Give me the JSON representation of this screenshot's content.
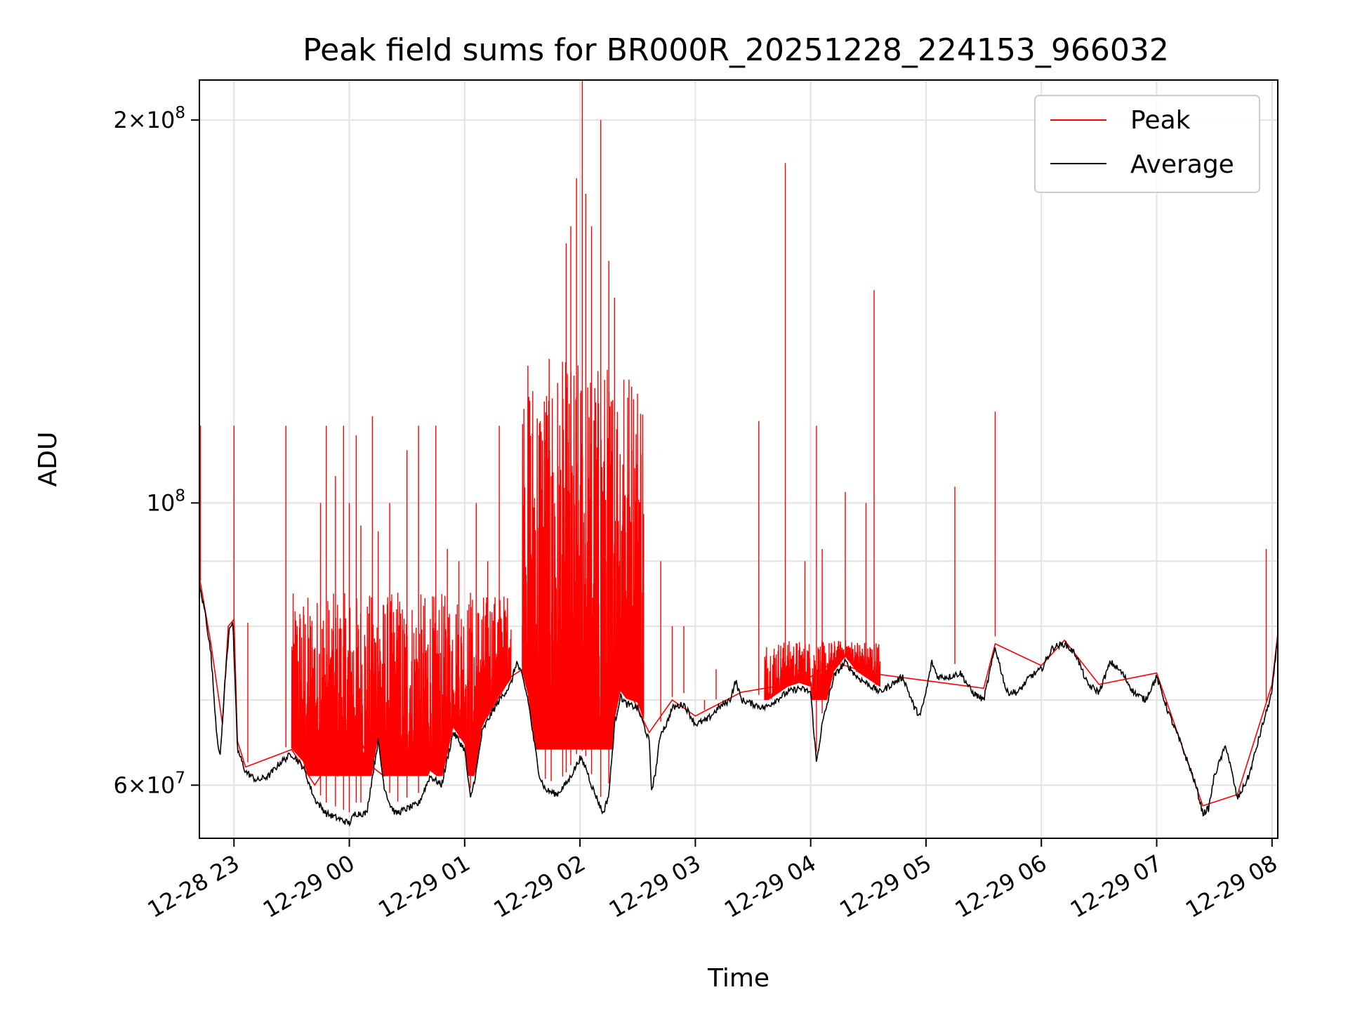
{
  "chart_data": {
    "type": "line",
    "title": "Peak field sums for BR000R_20251228_224153_966032",
    "xlabel": "Time",
    "ylabel": "ADU",
    "yscale": "log",
    "xlim": [
      -0.3,
      9.05
    ],
    "ylim": [
      54500000,
      215000000
    ],
    "grid": true,
    "legend_position": "top-right",
    "x_ticks": [
      {
        "value": 0,
        "label": "12-28 23"
      },
      {
        "value": 1,
        "label": "12-29 00"
      },
      {
        "value": 2,
        "label": "12-29 01"
      },
      {
        "value": 3,
        "label": "12-29 02"
      },
      {
        "value": 4,
        "label": "12-29 03"
      },
      {
        "value": 5,
        "label": "12-29 04"
      },
      {
        "value": 6,
        "label": "12-29 05"
      },
      {
        "value": 7,
        "label": "12-29 06"
      },
      {
        "value": 8,
        "label": "12-29 07"
      },
      {
        "value": 9,
        "label": "12-29 08"
      }
    ],
    "y_ticks": [
      {
        "value": 60000000,
        "mant": "6",
        "exp": "7"
      },
      {
        "value": 100000000,
        "mant": "",
        "exp": "8"
      },
      {
        "value": 200000000,
        "mant": "2",
        "exp": "8"
      }
    ],
    "y_minor_grid": [
      70000000,
      80000000,
      90000000
    ],
    "x_unit_note": "hours after 2025-12-28 23:00",
    "series": [
      {
        "name": "Average",
        "color": "#000000",
        "points": [
          [
            -0.3,
            86000000
          ],
          [
            -0.25,
            82000000
          ],
          [
            -0.2,
            76000000
          ],
          [
            -0.15,
            66000000
          ],
          [
            -0.12,
            63000000
          ],
          [
            -0.08,
            72000000
          ],
          [
            -0.04,
            80000000
          ],
          [
            -0.01,
            80500000
          ],
          [
            0.03,
            64000000
          ],
          [
            0.1,
            61500000
          ],
          [
            0.2,
            60500000
          ],
          [
            0.3,
            61000000
          ],
          [
            0.4,
            62500000
          ],
          [
            0.5,
            63500000
          ],
          [
            0.6,
            62000000
          ],
          [
            0.7,
            58500000
          ],
          [
            0.8,
            57000000
          ],
          [
            0.9,
            56500000
          ],
          [
            1.0,
            56000000
          ],
          [
            1.05,
            57000000
          ],
          [
            1.15,
            57000000
          ],
          [
            1.2,
            61000000
          ],
          [
            1.25,
            65000000
          ],
          [
            1.3,
            60000000
          ],
          [
            1.35,
            58000000
          ],
          [
            1.4,
            57000000
          ],
          [
            1.5,
            57500000
          ],
          [
            1.6,
            58000000
          ],
          [
            1.7,
            61000000
          ],
          [
            1.8,
            60000000
          ],
          [
            1.9,
            66000000
          ],
          [
            2.0,
            64000000
          ],
          [
            2.05,
            58500000
          ],
          [
            2.1,
            61500000
          ],
          [
            2.15,
            66000000
          ],
          [
            2.2,
            67500000
          ],
          [
            2.3,
            70000000
          ],
          [
            2.4,
            72000000
          ],
          [
            2.45,
            75000000
          ],
          [
            2.5,
            73000000
          ],
          [
            2.55,
            70000000
          ],
          [
            2.6,
            65000000
          ],
          [
            2.65,
            61000000
          ],
          [
            2.7,
            59500000
          ],
          [
            2.8,
            59000000
          ],
          [
            2.9,
            60500000
          ],
          [
            3.0,
            63000000
          ],
          [
            3.05,
            62000000
          ],
          [
            3.1,
            60000000
          ],
          [
            3.15,
            58500000
          ],
          [
            3.2,
            57000000
          ],
          [
            3.25,
            59000000
          ],
          [
            3.3,
            67000000
          ],
          [
            3.35,
            70500000
          ],
          [
            3.4,
            69500000
          ],
          [
            3.5,
            69000000
          ],
          [
            3.55,
            67000000
          ],
          [
            3.6,
            65000000
          ],
          [
            3.62,
            59500000
          ],
          [
            3.65,
            61000000
          ],
          [
            3.7,
            66000000
          ],
          [
            3.75,
            67000000
          ],
          [
            3.8,
            69000000
          ],
          [
            3.9,
            69500000
          ],
          [
            4.0,
            67000000
          ],
          [
            4.1,
            67500000
          ],
          [
            4.2,
            69000000
          ],
          [
            4.3,
            70000000
          ],
          [
            4.35,
            72500000
          ],
          [
            4.4,
            70000000
          ],
          [
            4.5,
            69500000
          ],
          [
            4.6,
            69000000
          ],
          [
            4.7,
            70000000
          ],
          [
            4.8,
            71000000
          ],
          [
            4.9,
            71500000
          ],
          [
            5.0,
            71000000
          ],
          [
            5.05,
            62500000
          ],
          [
            5.1,
            67000000
          ],
          [
            5.2,
            73000000
          ],
          [
            5.3,
            75000000
          ],
          [
            5.4,
            73000000
          ],
          [
            5.5,
            72000000
          ],
          [
            5.6,
            71000000
          ],
          [
            5.7,
            72000000
          ],
          [
            5.8,
            73000000
          ],
          [
            5.9,
            69000000
          ],
          [
            5.95,
            68000000
          ],
          [
            6.0,
            71000000
          ],
          [
            6.05,
            75000000
          ],
          [
            6.1,
            73000000
          ],
          [
            6.2,
            73000000
          ],
          [
            6.3,
            73500000
          ],
          [
            6.4,
            71000000
          ],
          [
            6.5,
            70000000
          ],
          [
            6.6,
            77000000
          ],
          [
            6.7,
            71000000
          ],
          [
            6.8,
            71000000
          ],
          [
            6.9,
            73000000
          ],
          [
            7.0,
            74000000
          ],
          [
            7.1,
            77000000
          ],
          [
            7.2,
            77500000
          ],
          [
            7.3,
            76000000
          ],
          [
            7.4,
            72000000
          ],
          [
            7.5,
            71000000
          ],
          [
            7.6,
            75000000
          ],
          [
            7.7,
            73500000
          ],
          [
            7.8,
            71000000
          ],
          [
            7.9,
            70000000
          ],
          [
            8.0,
            73000000
          ],
          [
            8.1,
            68500000
          ],
          [
            8.2,
            65000000
          ],
          [
            8.3,
            61500000
          ],
          [
            8.35,
            59500000
          ],
          [
            8.4,
            57000000
          ],
          [
            8.45,
            57500000
          ],
          [
            8.5,
            61000000
          ],
          [
            8.6,
            64500000
          ],
          [
            8.7,
            58500000
          ],
          [
            8.8,
            61000000
          ],
          [
            8.9,
            66000000
          ],
          [
            9.0,
            71000000
          ],
          [
            9.05,
            78500000
          ]
        ]
      },
      {
        "name": "Peak",
        "color": "#ff0000",
        "points": [
          [
            -0.3,
            87500000
          ],
          [
            -0.2,
            77500000
          ],
          [
            -0.1,
            67000000
          ],
          [
            -0.05,
            80000000
          ],
          [
            0.0,
            81000000
          ],
          [
            0.03,
            65000000
          ],
          [
            0.1,
            62000000
          ],
          [
            0.5,
            64000000
          ],
          [
            0.7,
            60000000
          ],
          [
            0.8,
            62000000
          ],
          [
            0.9,
            61000000
          ],
          [
            1.0,
            63500000
          ],
          [
            1.1,
            65000000
          ],
          [
            1.2,
            62000000
          ],
          [
            1.3,
            61000000
          ],
          [
            1.5,
            62000000
          ],
          [
            1.7,
            63000000
          ],
          [
            1.9,
            66000000
          ],
          [
            2.0,
            65000000
          ],
          [
            2.2,
            68000000
          ],
          [
            2.4,
            73000000
          ],
          [
            2.5,
            74000000
          ],
          [
            2.6,
            70000000
          ],
          [
            2.8,
            66000000
          ],
          [
            3.0,
            68000000
          ],
          [
            3.2,
            70000000
          ],
          [
            3.4,
            72000000
          ],
          [
            3.6,
            66000000
          ],
          [
            3.8,
            70000000
          ],
          [
            4.0,
            68000000
          ],
          [
            4.4,
            71000000
          ],
          [
            4.8,
            72000000
          ],
          [
            5.0,
            73000000
          ],
          [
            5.2,
            75000000
          ],
          [
            5.5,
            73500000
          ],
          [
            6.0,
            72500000
          ],
          [
            6.5,
            71500000
          ],
          [
            6.6,
            77500000
          ],
          [
            7.0,
            74500000
          ],
          [
            7.2,
            78000000
          ],
          [
            7.5,
            72000000
          ],
          [
            8.0,
            73500000
          ],
          [
            8.4,
            57800000
          ],
          [
            8.7,
            59000000
          ],
          [
            9.0,
            72000000
          ],
          [
            9.05,
            79000000
          ]
        ],
        "spikes": [
          [
            -0.29,
            115000000
          ],
          [
            0.0,
            115000000
          ],
          [
            0.12,
            80500000
          ],
          [
            0.45,
            115000000
          ],
          [
            0.62,
            68000000
          ],
          [
            0.75,
            100000000
          ],
          [
            0.8,
            115000000
          ],
          [
            0.88,
            105000000
          ],
          [
            0.95,
            115000000
          ],
          [
            1.0,
            100000000
          ],
          [
            1.06,
            113000000
          ],
          [
            1.1,
            96000000
          ],
          [
            1.2,
            117000000
          ],
          [
            1.25,
            95000000
          ],
          [
            1.35,
            100000000
          ],
          [
            1.42,
            85000000
          ],
          [
            1.5,
            110000000
          ],
          [
            1.6,
            115000000
          ],
          [
            1.75,
            115000000
          ],
          [
            1.85,
            92000000
          ],
          [
            1.95,
            90000000
          ],
          [
            2.05,
            85000000
          ],
          [
            2.1,
            100000000
          ],
          [
            2.2,
            90000000
          ],
          [
            2.3,
            115000000
          ],
          [
            2.5,
            80000000
          ],
          [
            2.6,
            96000000
          ],
          [
            2.7,
            112000000
          ],
          [
            2.75,
            105000000
          ],
          [
            2.85,
            113000000
          ],
          [
            2.88,
            160000000
          ],
          [
            2.92,
            165000000
          ],
          [
            2.97,
            180000000
          ],
          [
            3.02,
            215000000
          ],
          [
            3.05,
            175000000
          ],
          [
            3.1,
            165000000
          ],
          [
            3.18,
            200000000
          ],
          [
            3.25,
            155000000
          ],
          [
            3.3,
            145000000
          ],
          [
            3.38,
            125000000
          ],
          [
            3.45,
            110000000
          ],
          [
            3.55,
            95000000
          ],
          [
            3.7,
            90000000
          ],
          [
            3.8,
            80000000
          ],
          [
            3.9,
            80000000
          ],
          [
            4.08,
            70000000
          ],
          [
            4.18,
            74000000
          ],
          [
            4.55,
            116000000
          ],
          [
            4.78,
            185000000
          ],
          [
            4.95,
            90000000
          ],
          [
            5.05,
            115000000
          ],
          [
            5.1,
            92000000
          ],
          [
            5.3,
            102000000
          ],
          [
            5.48,
            100000000
          ],
          [
            5.55,
            147000000
          ],
          [
            6.25,
            103000000
          ],
          [
            6.6,
            118000000
          ],
          [
            8.95,
            92000000
          ]
        ],
        "dense_bands": [
          {
            "x_start": 0.5,
            "x_end": 2.4,
            "low": 61000000,
            "high": 85000000
          },
          {
            "x_start": 2.5,
            "x_end": 3.55,
            "low": 64000000,
            "high": 130000000
          },
          {
            "x_start": 4.6,
            "x_end": 5.6,
            "low": 70000000,
            "high": 78000000
          }
        ]
      }
    ],
    "legend": [
      {
        "label": "Peak",
        "color": "#ff0000"
      },
      {
        "label": "Average",
        "color": "#000000"
      }
    ]
  }
}
